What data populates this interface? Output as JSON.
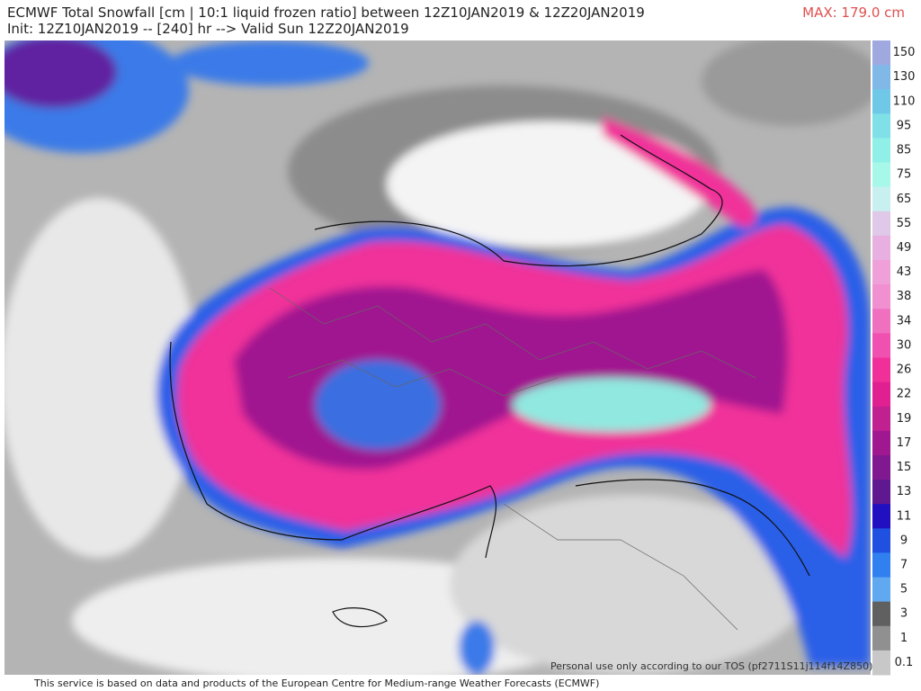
{
  "header": {
    "title_line1": "ECMWF Total Snowfall [cm | 10:1 liquid frozen ratio] between 12Z10JAN2019 & 12Z20JAN2019",
    "title_line2": "Init: 12Z10JAN2019 -- [240] hr --> Valid Sun 12Z20JAN2019",
    "max_label": "MAX: 179.0 cm"
  },
  "colorbar": {
    "labels": [
      "150",
      "130",
      "110",
      "95",
      "85",
      "75",
      "65",
      "55",
      "49",
      "43",
      "38",
      "34",
      "30",
      "26",
      "22",
      "19",
      "17",
      "15",
      "13",
      "11",
      "9",
      "7",
      "5",
      "3",
      "1",
      "0.1"
    ]
  },
  "map": {
    "watermark": "Personal use only according to our TOS (pf2711S11j114f14Z850)"
  },
  "footer": {
    "text": "This service is based on data and products of the European Centre for Medium-range Weather Forecasts (ECMWF)"
  }
}
